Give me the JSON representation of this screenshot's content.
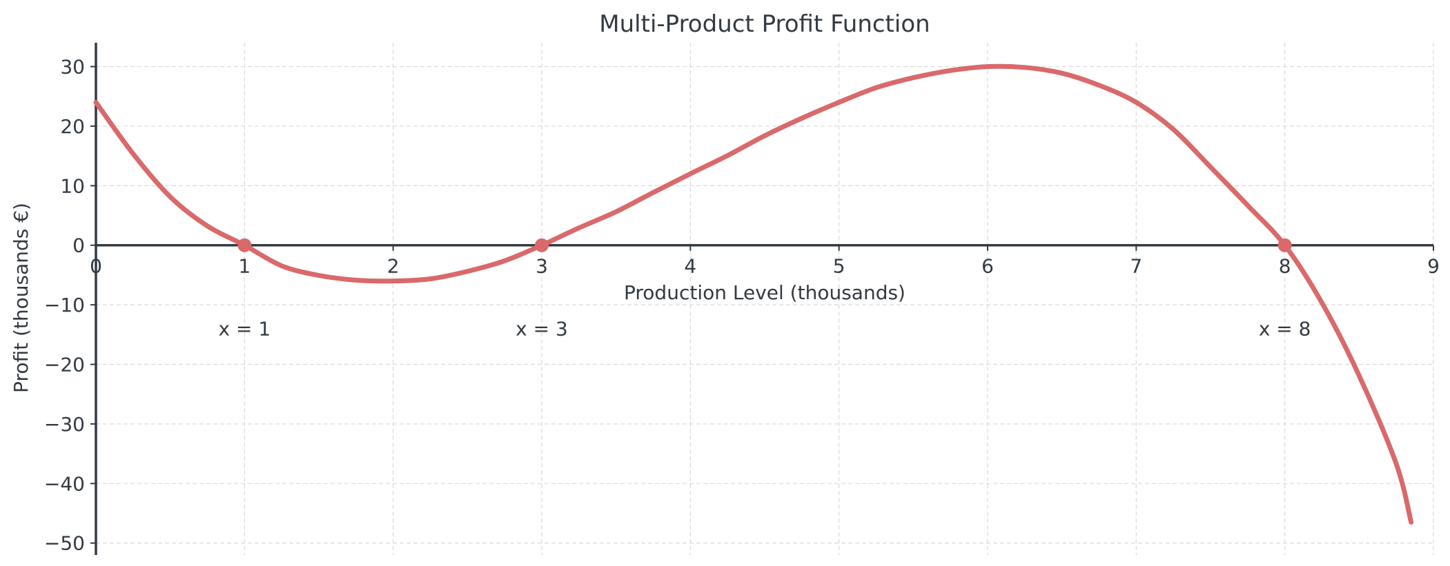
{
  "chart_data": {
    "type": "line",
    "title": "Multi-Product Profit Function",
    "xlabel": "Production Level (thousands)",
    "ylabel": "Profit (thousands €)",
    "xlim": [
      0,
      9
    ],
    "ylim": [
      -52,
      34
    ],
    "x_ticks": [
      0,
      1,
      2,
      3,
      4,
      5,
      6,
      7,
      8,
      9
    ],
    "x_tick_labels": [
      "0",
      "1",
      "2",
      "3",
      "4",
      "5",
      "6",
      "7",
      "8",
      "9"
    ],
    "y_ticks": [
      30,
      20,
      10,
      0,
      -10,
      -20,
      -30,
      -40,
      -50
    ],
    "y_tick_labels": [
      "30",
      "20",
      "10",
      "0",
      "−10",
      "−20",
      "−30",
      "−40",
      "−50"
    ],
    "grid": true,
    "line_color": "#d9696b",
    "axis_color": "#333a42",
    "series": [
      {
        "x": [
          0,
          0.25,
          0.5,
          0.75,
          1,
          1.25,
          1.5,
          1.75,
          2,
          2.25,
          2.5,
          2.75,
          3,
          3.25,
          3.5,
          3.75,
          4,
          4.25,
          4.5,
          4.75,
          5,
          5.25,
          5.5,
          5.75,
          6,
          6.25,
          6.5,
          6.75,
          7,
          7.25,
          7.5,
          7.75,
          8,
          8.25,
          8.5,
          8.75,
          8.85
        ],
        "y": [
          24,
          15.36,
          8.13,
          3.23,
          0,
          -3.45,
          -5.06,
          -5.86,
          -6,
          -5.64,
          -4.38,
          -2.61,
          0,
          2.91,
          5.63,
          8.86,
          12,
          15.06,
          18.38,
          21.33,
          24,
          26.45,
          28.13,
          29.33,
          30,
          29.86,
          28.88,
          26.86,
          24,
          19.45,
          13.13,
          6.69,
          0,
          -9.67,
          -21.88,
          -36.72,
          -46.5
        ]
      }
    ],
    "roots": [
      {
        "x": 1,
        "y": 0,
        "label": "x = 1"
      },
      {
        "x": 3,
        "y": 0,
        "label": "x = 3"
      },
      {
        "x": 8,
        "y": 0,
        "label": "x = 8"
      }
    ]
  }
}
